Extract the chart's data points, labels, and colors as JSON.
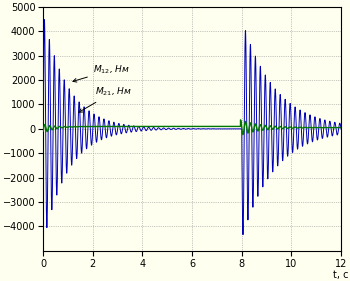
{
  "title": "",
  "xlabel": "t, c",
  "ylabel": "",
  "xlim": [
    0,
    12
  ],
  "ylim": [
    -5000,
    5000
  ],
  "yticks": [
    -4000,
    -3000,
    -2000,
    -1000,
    0,
    1000,
    2000,
    3000,
    4000,
    5000
  ],
  "xticks": [
    0,
    2,
    4,
    6,
    8,
    10,
    12
  ],
  "blue_color": "#0000BB",
  "green_color": "#007700",
  "grid_color": "#909090",
  "bg_color": "#FFFFF0",
  "figsize": [
    3.5,
    2.81
  ],
  "dpi": 100
}
